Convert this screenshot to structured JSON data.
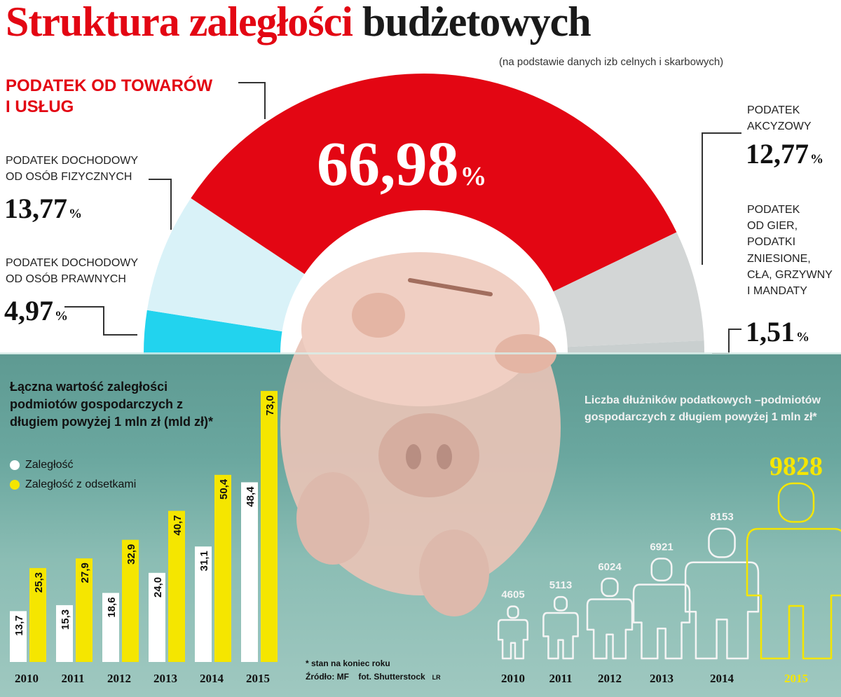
{
  "title": {
    "part_red": "Struktura zaległości",
    "part_black": "budżetowych"
  },
  "subtitle": "(na podstawie danych izb celnych i skarbowych)",
  "structure": {
    "vat": {
      "label": "PODATEK OD TOWARÓW\nI USŁUG",
      "value": "66,98",
      "unit": "%"
    },
    "pit": {
      "label": "PODATEK DOCHODOWY\nOD OSÓB FIZYCZNYCH",
      "value": "13,77",
      "unit": "%"
    },
    "cit": {
      "label": "PODATEK DOCHODOWY\nOD OSÓB PRAWNYCH",
      "value": "4,97",
      "unit": "%"
    },
    "excise": {
      "label": "PODATEK\nAKCYZOWY",
      "value": "12,77",
      "unit": "%"
    },
    "other": {
      "label": "PODATEK\nOD GIER,\nPODATKI\nZNIESIONE,\nCŁA, GRZYWNY\nI MANDATY",
      "value": "1,51",
      "unit": "%"
    }
  },
  "bar_chart": {
    "title": "Łączna wartość zaległości podmiotów gospodarczych z długiem powyżej 1 mln zł (mld zł)*",
    "legend": [
      "Zaległość",
      "Zaległość z odsetkami"
    ]
  },
  "people_chart": {
    "title": "Liczba dłużników podatkowych –podmiotów gospodarczych z długiem powyżej 1 mln zł*"
  },
  "notes": {
    "footnote": "* stan na koniec roku",
    "source": "Źródło: MF",
    "photo": "fot. Shutterstock",
    "initials": "LR"
  },
  "colors": {
    "red": "#e30613",
    "yellow": "#f5e600",
    "white": "#ffffff",
    "light_blue": "#d9f2f8",
    "cyan": "#22d3ee",
    "gray": "#d3d6d6",
    "water": "#6aa79f"
  },
  "chart_data": [
    {
      "type": "pie",
      "title": "Struktura zaległości budżetowych",
      "categories": [
        "PODATEK OD TOWARÓW I USŁUG",
        "PODATEK DOCHODOWY OD OSÓB FIZYCZNYCH",
        "PODATEK DOCHODOWY OD OSÓB PRAWNYCH",
        "PODATEK AKCYZOWY",
        "PODATEK OD GIER, PODATKI ZNIESIONE, CŁA, GRZYWNY I MANDATY"
      ],
      "values": [
        66.98,
        13.77,
        4.97,
        12.77,
        1.51
      ],
      "unit": "%",
      "shape": "semicircle"
    },
    {
      "type": "bar",
      "title": "Łączna wartość zaległości podmiotów gospodarczych z długiem powyżej 1 mln zł (mld zł)*",
      "categories": [
        "2010",
        "2011",
        "2012",
        "2013",
        "2014",
        "2015"
      ],
      "series": [
        {
          "name": "Zaległość",
          "values": [
            13.7,
            15.3,
            18.6,
            24.0,
            31.1,
            48.4
          ],
          "labels": [
            "13,7",
            "15,3",
            "18,6",
            "24,0",
            "31,1",
            "48,4"
          ]
        },
        {
          "name": "Zaległość z odsetkami",
          "values": [
            25.3,
            27.9,
            32.9,
            40.7,
            50.4,
            73.0
          ],
          "labels": [
            "25,3",
            "27,9",
            "32,9",
            "40,7",
            "50,4",
            "73,0"
          ]
        }
      ],
      "ylim": [
        0,
        75
      ]
    },
    {
      "type": "bar",
      "title": "Liczba dłużników podatkowych –podmiotów gospodarczych z długiem powyżej 1 mln zł*",
      "categories": [
        "2010",
        "2011",
        "2012",
        "2013",
        "2014",
        "2015"
      ],
      "values": [
        4605,
        5113,
        6024,
        6921,
        8153,
        9828
      ],
      "labels": [
        "4605",
        "5113",
        "6024",
        "6921",
        "8153",
        "9828"
      ],
      "highlight": "2015"
    }
  ]
}
